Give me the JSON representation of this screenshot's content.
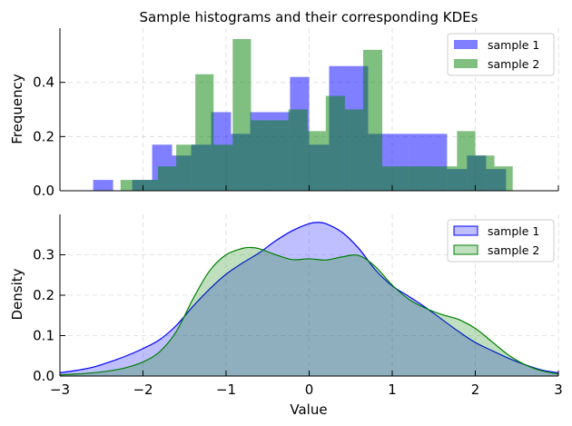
{
  "chart_data": [
    {
      "type": "bar",
      "title": "Sample histograms and their corresponding KDEs",
      "ylabel": "Frequency",
      "xlim": [
        -3,
        3
      ],
      "ylim": [
        0,
        0.6
      ],
      "yticks": [
        0.0,
        0.2,
        0.4
      ],
      "grid": true,
      "legend_position": "top-right",
      "series": [
        {
          "name": "sample 1",
          "color": "#0000ff",
          "alpha": 0.5,
          "bins": [
            [
              -2.6,
              -2.36,
              0.04
            ],
            [
              -2.36,
              -2.13,
              0.0
            ],
            [
              -2.13,
              -1.89,
              0.04
            ],
            [
              -1.89,
              -1.65,
              0.17
            ],
            [
              -1.65,
              -1.42,
              0.13
            ],
            [
              -1.42,
              -1.18,
              0.17
            ],
            [
              -1.18,
              -0.94,
              0.29
            ],
            [
              -0.94,
              -0.71,
              0.21
            ],
            [
              -0.71,
              -0.47,
              0.29
            ],
            [
              -0.47,
              -0.23,
              0.29
            ],
            [
              -0.23,
              0.0,
              0.42
            ],
            [
              0.0,
              0.24,
              0.17
            ],
            [
              0.24,
              0.48,
              0.46
            ],
            [
              0.48,
              0.71,
              0.46
            ],
            [
              0.71,
              0.95,
              0.21
            ],
            [
              0.95,
              1.19,
              0.21
            ],
            [
              1.19,
              1.42,
              0.21
            ],
            [
              1.42,
              1.66,
              0.21
            ],
            [
              1.66,
              1.9,
              0.08
            ],
            [
              1.9,
              2.13,
              0.13
            ],
            [
              2.13,
              2.37,
              0.08
            ]
          ]
        },
        {
          "name": "sample 2",
          "color": "#008000",
          "alpha": 0.5,
          "bins": [
            [
              -2.27,
              -2.05,
              0.04
            ],
            [
              -2.05,
              -1.82,
              0.04
            ],
            [
              -1.82,
              -1.6,
              0.09
            ],
            [
              -1.6,
              -1.37,
              0.17
            ],
            [
              -1.37,
              -1.15,
              0.43
            ],
            [
              -1.15,
              -0.92,
              0.17
            ],
            [
              -0.92,
              -0.7,
              0.56
            ],
            [
              -0.7,
              -0.47,
              0.26
            ],
            [
              -0.47,
              -0.25,
              0.26
            ],
            [
              -0.25,
              -0.02,
              0.3
            ],
            [
              -0.02,
              0.2,
              0.22
            ],
            [
              0.2,
              0.43,
              0.35
            ],
            [
              0.43,
              0.65,
              0.3
            ],
            [
              0.65,
              0.88,
              0.52
            ],
            [
              0.88,
              1.1,
              0.09
            ],
            [
              1.1,
              1.33,
              0.09
            ],
            [
              1.33,
              1.55,
              0.09
            ],
            [
              1.55,
              1.78,
              0.09
            ],
            [
              1.78,
              2.0,
              0.22
            ],
            [
              2.0,
              2.23,
              0.13
            ],
            [
              2.23,
              2.45,
              0.09
            ]
          ]
        }
      ]
    },
    {
      "type": "area",
      "xlabel": "Value",
      "ylabel": "Density",
      "xlim": [
        -3,
        3
      ],
      "ylim": [
        0,
        0.4
      ],
      "xticks": [
        -3,
        -2,
        -1,
        0,
        1,
        2,
        3
      ],
      "yticks": [
        0.0,
        0.1,
        0.2,
        0.3
      ],
      "grid": true,
      "legend_position": "top-right",
      "series": [
        {
          "name": "sample 1",
          "color": "#0000ff",
          "fill": "#0000ff",
          "alpha": 0.25,
          "x": [
            -3.0,
            -2.8,
            -2.6,
            -2.4,
            -2.2,
            -2.0,
            -1.8,
            -1.6,
            -1.4,
            -1.2,
            -1.0,
            -0.8,
            -0.6,
            -0.4,
            -0.2,
            0.0,
            0.1,
            0.2,
            0.4,
            0.6,
            0.8,
            1.0,
            1.2,
            1.4,
            1.6,
            1.8,
            2.0,
            2.2,
            2.4,
            2.6,
            2.8,
            3.0
          ],
          "y": [
            0.008,
            0.014,
            0.022,
            0.035,
            0.05,
            0.068,
            0.09,
            0.125,
            0.172,
            0.215,
            0.252,
            0.28,
            0.305,
            0.335,
            0.36,
            0.377,
            0.38,
            0.377,
            0.355,
            0.315,
            0.262,
            0.223,
            0.197,
            0.17,
            0.14,
            0.11,
            0.083,
            0.063,
            0.044,
            0.028,
            0.015,
            0.008
          ]
        },
        {
          "name": "sample 2",
          "color": "#008000",
          "fill": "#008000",
          "alpha": 0.25,
          "x": [
            -3.0,
            -2.8,
            -2.6,
            -2.4,
            -2.2,
            -2.0,
            -1.8,
            -1.6,
            -1.4,
            -1.2,
            -1.0,
            -0.8,
            -0.7,
            -0.6,
            -0.4,
            -0.2,
            0.0,
            0.2,
            0.4,
            0.6,
            0.8,
            1.0,
            1.2,
            1.4,
            1.6,
            1.8,
            2.0,
            2.2,
            2.4,
            2.6,
            2.8,
            3.0
          ],
          "y": [
            0.003,
            0.005,
            0.008,
            0.013,
            0.021,
            0.035,
            0.06,
            0.11,
            0.19,
            0.26,
            0.3,
            0.316,
            0.318,
            0.315,
            0.3,
            0.288,
            0.29,
            0.287,
            0.295,
            0.298,
            0.27,
            0.225,
            0.19,
            0.168,
            0.152,
            0.14,
            0.118,
            0.085,
            0.052,
            0.028,
            0.013,
            0.005
          ]
        }
      ]
    }
  ]
}
